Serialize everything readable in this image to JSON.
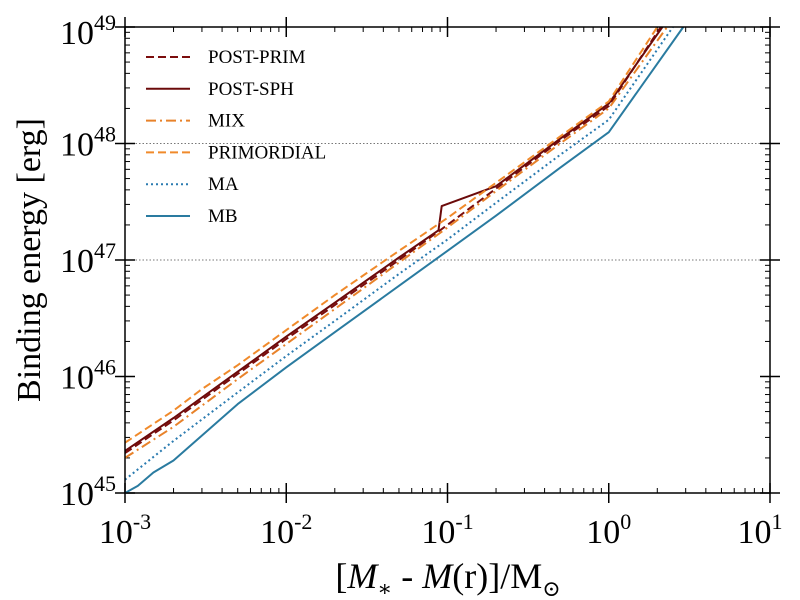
{
  "chart_data": {
    "type": "line",
    "xscale": "log",
    "yscale": "log",
    "xlim": [
      0.001,
      10
    ],
    "ylim": [
      1e+45,
      1e+49
    ],
    "xlabel_parts": {
      "open": "[",
      "m_star": "M",
      "star_sub": "∗",
      "minus": " - ",
      "m_r": "M",
      "r_arg": "(r)",
      "close": "]/M",
      "sun": "⊙"
    },
    "ylabel": "Binding energy [erg]",
    "x_ticks": [
      {
        "value": 0.001,
        "base": "10",
        "exp": "-3"
      },
      {
        "value": 0.01,
        "base": "10",
        "exp": "-2"
      },
      {
        "value": 0.1,
        "base": "10",
        "exp": "-1"
      },
      {
        "value": 1,
        "base": "10",
        "exp": "0"
      },
      {
        "value": 10,
        "base": "10",
        "exp": "1"
      }
    ],
    "y_ticks": [
      {
        "value": 1e+45,
        "base": "10",
        "exp": "45"
      },
      {
        "value": 1e+46,
        "base": "10",
        "exp": "46"
      },
      {
        "value": 1e+47,
        "base": "10",
        "exp": "47"
      },
      {
        "value": 1e+48,
        "base": "10",
        "exp": "48"
      },
      {
        "value": 1e+49,
        "base": "10",
        "exp": "49"
      }
    ],
    "hlines": [
      1e+47,
      1e+48
    ],
    "legend_position": "top-left",
    "series": [
      {
        "name": "POST-PRIM",
        "color": "#7b0d0d",
        "dash": "dashed",
        "x": [
          0.001,
          0.002,
          0.005,
          0.01,
          0.02,
          0.05,
          0.1,
          0.2,
          0.5,
          1,
          2.1
        ],
        "y": [
          2.2e+45,
          4.2e+45,
          1.05e+46,
          2.1e+46,
          4.1e+46,
          1e+47,
          2e+47,
          4.1e+47,
          1.06e+48,
          2.1e+48,
          1e+49
        ]
      },
      {
        "name": "POST-SPH",
        "color": "#6b0a0a",
        "dash": "solid",
        "x": [
          0.001,
          0.002,
          0.005,
          0.01,
          0.02,
          0.05,
          0.088,
          0.092,
          0.2,
          0.5,
          1,
          2.15
        ],
        "y": [
          2.3e+45,
          4.4e+45,
          1.1e+46,
          2.2e+46,
          4.3e+46,
          1.05e+47,
          1.8e+47,
          2.9e+47,
          4.3e+47,
          1.1e+48,
          2.2e+48,
          1e+49
        ]
      },
      {
        "name": "MIX",
        "color": "#e8822a",
        "dash": "dashdot",
        "x": [
          0.001,
          0.002,
          0.005,
          0.01,
          0.02,
          0.05,
          0.1,
          0.2,
          0.5,
          1,
          2.3
        ],
        "y": [
          2e+45,
          3.7e+45,
          9.5e+45,
          1.9e+46,
          3.8e+46,
          9.5e+46,
          1.9e+47,
          3.9e+47,
          1e+48,
          2e+48,
          1e+49
        ]
      },
      {
        "name": "PRIMORDIAL",
        "color": "#f08a2b",
        "dash": "dashed",
        "x": [
          0.001,
          0.002,
          0.003,
          0.005,
          0.01,
          0.02,
          0.05,
          0.1,
          0.2,
          0.5,
          1,
          2.0
        ],
        "y": [
          2.7e+45,
          5.1e+45,
          7.8e+45,
          1.25e+46,
          2.5e+46,
          5e+46,
          1.2e+47,
          2.3e+47,
          4.6e+47,
          1.15e+48,
          2.3e+48,
          1e+49
        ]
      },
      {
        "name": "MA",
        "color": "#2b7bb0",
        "dash": "dotted",
        "x": [
          0.001,
          0.002,
          0.005,
          0.01,
          0.02,
          0.05,
          0.1,
          0.2,
          0.5,
          1,
          2.5
        ],
        "y": [
          1.3e+45,
          2.8e+45,
          7.3e+45,
          1.5e+46,
          3e+46,
          7.6e+46,
          1.5e+47,
          3.1e+47,
          8e+47,
          1.6e+48,
          1e+49
        ]
      },
      {
        "name": "MB",
        "color": "#2a7ba0",
        "dash": "solid",
        "x": [
          0.001,
          0.0012,
          0.0015,
          0.002,
          0.005,
          0.01,
          0.02,
          0.05,
          0.1,
          0.2,
          0.5,
          1,
          2.9
        ],
        "y": [
          1e+45,
          1.15e+45,
          1.5e+45,
          1.9e+45,
          5.8e+45,
          1.2e+46,
          2.4e+46,
          6e+46,
          1.2e+47,
          2.4e+47,
          6.2e+47,
          1.25e+48,
          1e+49
        ]
      }
    ]
  }
}
